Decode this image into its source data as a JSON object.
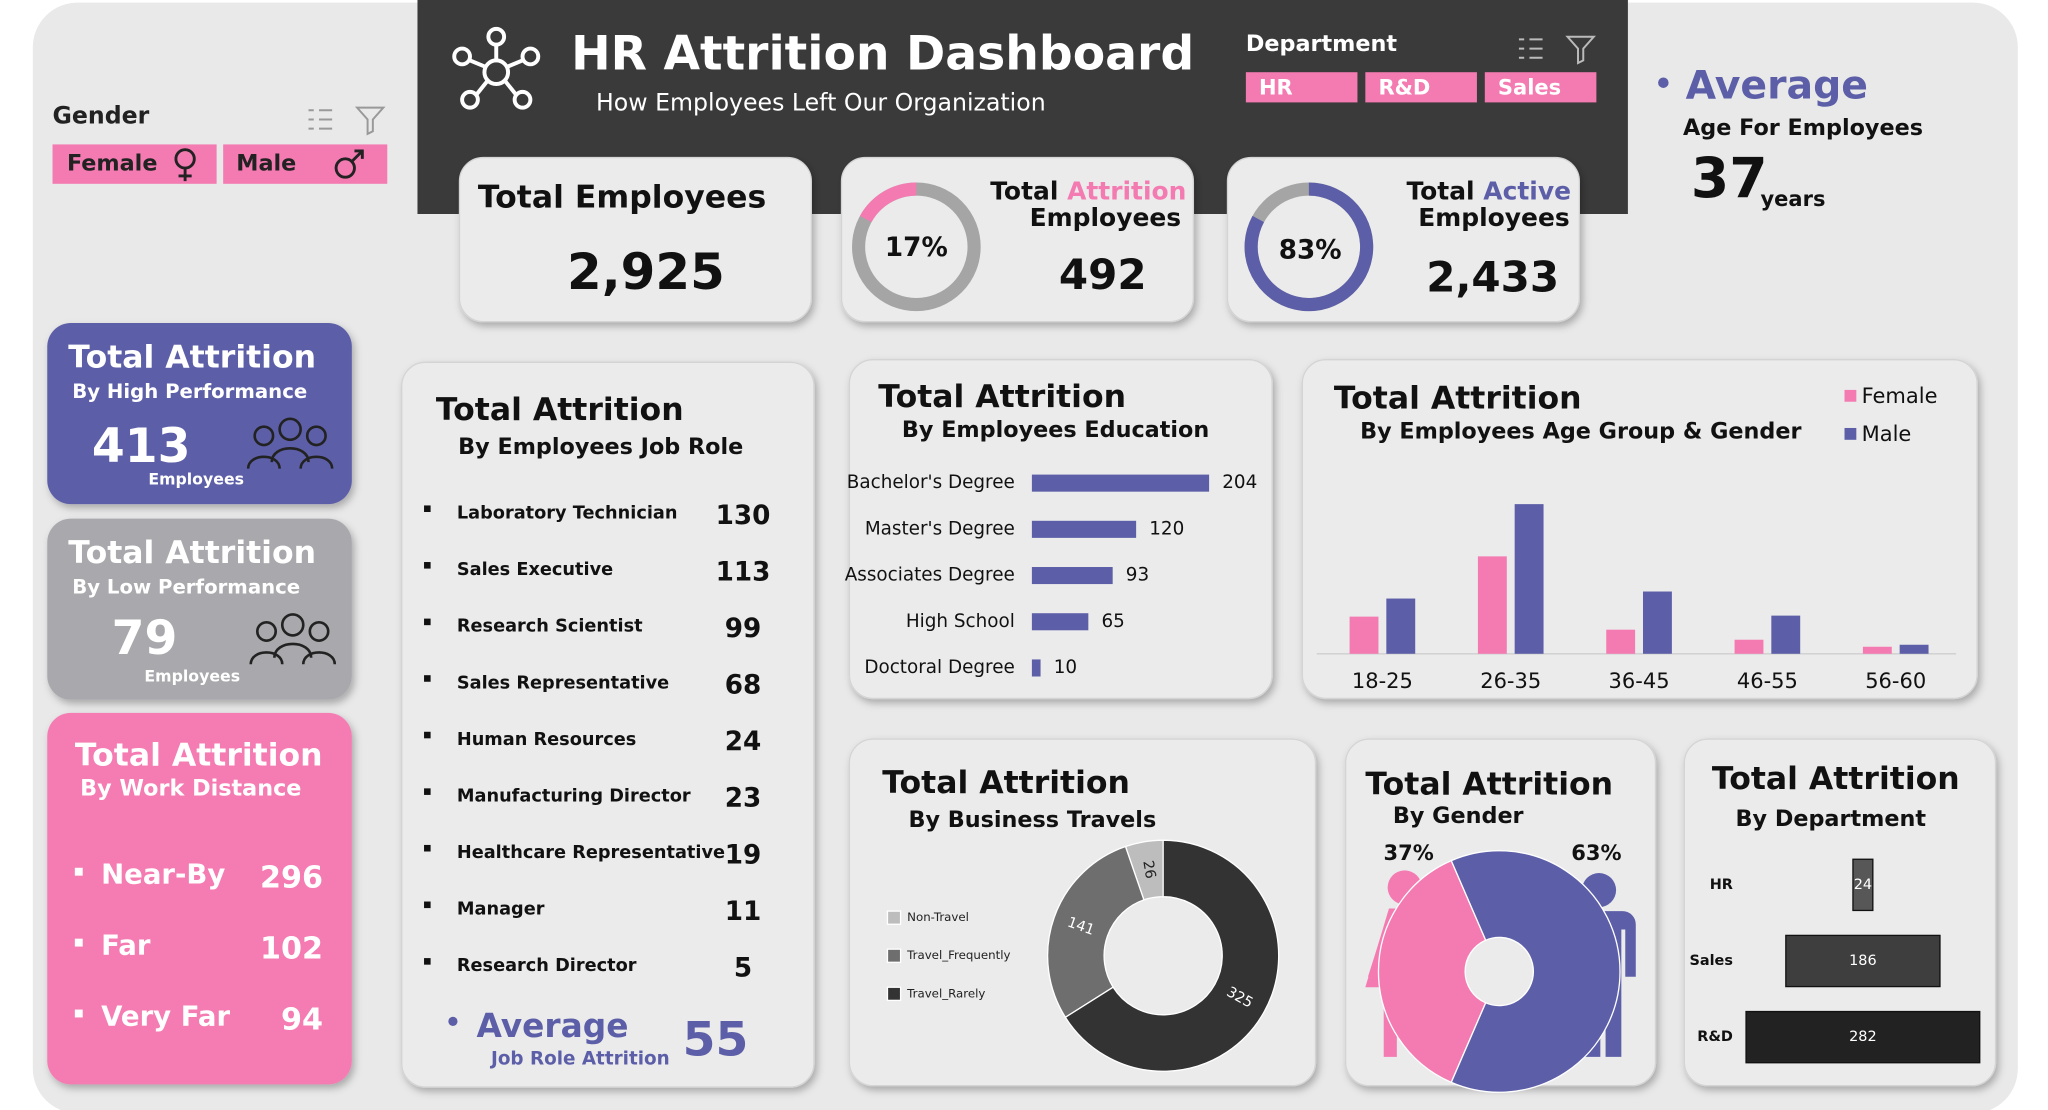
{
  "header": {
    "title": "HR Attrition Dashboard",
    "subtitle": "How Employees Left Our Organization"
  },
  "filters": {
    "gender": {
      "label": "Gender",
      "options": [
        "Female",
        "Male"
      ]
    },
    "department": {
      "label": "Department",
      "options": [
        "HR",
        "R&D",
        "Sales"
      ]
    }
  },
  "kpis": {
    "total_employees": {
      "label": "Total Employees",
      "value": "2,925"
    },
    "attrition": {
      "label_prefix": "Total",
      "label_highlight": "Attrition",
      "label_suffix": "Employees",
      "percent": 17,
      "percent_label": "17%",
      "value": "492",
      "color": "#f47bb2"
    },
    "active": {
      "label_prefix": "Total",
      "label_highlight": "Active",
      "label_suffix": "Employees",
      "percent": 83,
      "percent_label": "83%",
      "value": "2,433",
      "color": "#5c5fa8"
    },
    "average_age": {
      "label": "Average",
      "sublabel": "Age For Employees",
      "value": "37",
      "unit": "years"
    }
  },
  "performance": {
    "high": {
      "title": "Total Attrition",
      "subtitle": "By High Performance",
      "value": "413",
      "unit": "Employees"
    },
    "low": {
      "title": "Total Attrition",
      "subtitle": "By Low Performance",
      "value": "79",
      "unit": "Employees"
    }
  },
  "work_distance": {
    "title": "Total Attrition",
    "subtitle": "By Work Distance",
    "items": [
      {
        "label": "Near-By",
        "value": "296"
      },
      {
        "label": "Far",
        "value": "102"
      },
      {
        "label": "Very Far",
        "value": "94"
      }
    ]
  },
  "job_role": {
    "title": "Total Attrition",
    "subtitle": "By Employees Job Role",
    "items": [
      {
        "label": "Laboratory Technician",
        "value": "130"
      },
      {
        "label": "Sales Executive",
        "value": "113"
      },
      {
        "label": "Research Scientist",
        "value": "99"
      },
      {
        "label": "Sales Representative",
        "value": "68"
      },
      {
        "label": "Human Resources",
        "value": "24"
      },
      {
        "label": "Manufacturing Director",
        "value": "23"
      },
      {
        "label": "Healthcare Representative",
        "value": "19"
      },
      {
        "label": "Manager",
        "value": "11"
      },
      {
        "label": "Research Director",
        "value": "5"
      }
    ],
    "average": {
      "label": "Average",
      "sublabel": "Job Role Attrition",
      "value": "55"
    }
  },
  "chart_data": [
    {
      "type": "bar",
      "orientation": "horizontal",
      "title": "Total Attrition",
      "subtitle": "By Employees Education",
      "categories": [
        "Bachelor's Degree",
        "Master's Degree",
        "Associates Degree",
        "High School",
        "Doctoral Degree"
      ],
      "values": [
        204,
        120,
        93,
        65,
        10
      ],
      "color": "#5c5fa8"
    },
    {
      "type": "bar",
      "title": "Total Attrition",
      "subtitle": "By Employees Age Group & Gender",
      "categories": [
        "18-25",
        "26-35",
        "36-45",
        "46-55",
        "56-60"
      ],
      "series": [
        {
          "name": "Female",
          "color": "#f47bb2",
          "values": [
            37,
            97,
            24,
            14,
            7
          ]
        },
        {
          "name": "Male",
          "color": "#5c5fa8",
          "values": [
            55,
            149,
            62,
            38,
            9
          ]
        }
      ]
    },
    {
      "type": "donut",
      "title": "Total Attrition",
      "subtitle": "By Business Travels",
      "categories": [
        "Non-Travel",
        "Travel_Frequently",
        "Travel_Rarely"
      ],
      "values": [
        26,
        141,
        325
      ],
      "colors": [
        "#bdbdbd",
        "#6e6e6e",
        "#333333"
      ]
    },
    {
      "type": "donut",
      "title": "Total Attrition",
      "subtitle": "By Gender",
      "values": [
        37,
        63
      ],
      "value_labels": [
        "37%",
        "63%"
      ],
      "colors": [
        "#f47bb2",
        "#5c5fa8"
      ]
    },
    {
      "type": "bar",
      "orientation": "horizontal",
      "title": "Total Attrition",
      "subtitle": "By Department",
      "categories": [
        "HR",
        "Sales",
        "R&D"
      ],
      "values": [
        24,
        186,
        282
      ],
      "colors": [
        "#575757",
        "#3e3e3e",
        "#222222"
      ]
    }
  ]
}
